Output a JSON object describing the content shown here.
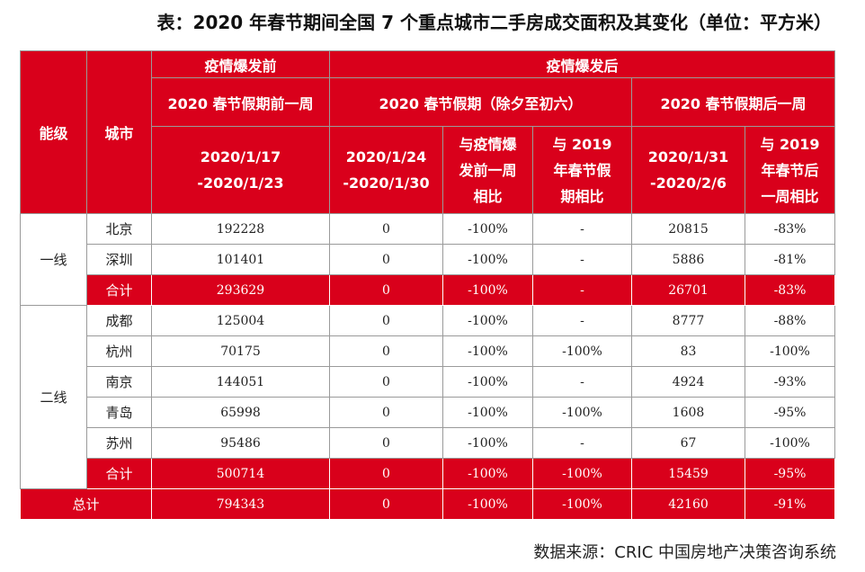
{
  "title": "表：2020 年春节期间全国 7 个重点城市二手房成交面积及其变化（单位：平方米）",
  "source": "数据来源：CRIC 中国房地产决策咨询系统",
  "header": {
    "tier": "能级",
    "city": "城市",
    "before_group": "疫情爆发前",
    "after_group": "疫情爆发后",
    "week_before": "2020 春节假期前一周",
    "holiday": "2020 春节假期（除夕至初六）",
    "week_after": "2020 春节假期后一周",
    "col1_line1": "2020/1/17",
    "col1_line2": "-2020/1/23",
    "col2_line1": "2020/1/24",
    "col2_line2": "-2020/1/30",
    "col3_line1": "与疫情爆",
    "col3_line2": "发前一周",
    "col3_line3": "相比",
    "col4_line1": "与 2019",
    "col4_line2": "年春节假",
    "col4_line3": "期相比",
    "col5_line1": "2020/1/31",
    "col5_line2": "-2020/2/6",
    "col6_line1": "与 2019",
    "col6_line2": "年春节后",
    "col6_line3": "一周相比"
  },
  "tiers": {
    "tier1": "一线",
    "tier2": "二线"
  },
  "rows": [
    {
      "city": "北京",
      "before": "192228",
      "holiday": "0",
      "vs_before": "-100%",
      "vs_2019": "-",
      "after": "20815",
      "vs_2019_after": "-83%"
    },
    {
      "city": "深圳",
      "before": "101401",
      "holiday": "0",
      "vs_before": "-100%",
      "vs_2019": "-",
      "after": "5886",
      "vs_2019_after": "-81%"
    },
    {
      "city": "合计",
      "before": "293629",
      "holiday": "0",
      "vs_before": "-100%",
      "vs_2019": "-",
      "after": "26701",
      "vs_2019_after": "-83%"
    },
    {
      "city": "成都",
      "before": "125004",
      "holiday": "0",
      "vs_before": "-100%",
      "vs_2019": "-",
      "after": "8777",
      "vs_2019_after": "-88%"
    },
    {
      "city": "杭州",
      "before": "70175",
      "holiday": "0",
      "vs_before": "-100%",
      "vs_2019": "-100%",
      "after": "83",
      "vs_2019_after": "-100%"
    },
    {
      "city": "南京",
      "before": "144051",
      "holiday": "0",
      "vs_before": "-100%",
      "vs_2019": "-",
      "after": "4924",
      "vs_2019_after": "-93%"
    },
    {
      "city": "青岛",
      "before": "65998",
      "holiday": "0",
      "vs_before": "-100%",
      "vs_2019": "-100%",
      "after": "1608",
      "vs_2019_after": "-95%"
    },
    {
      "city": "苏州",
      "before": "95486",
      "holiday": "0",
      "vs_before": "-100%",
      "vs_2019": "-",
      "after": "67",
      "vs_2019_after": "-100%"
    },
    {
      "city": "合计",
      "before": "500714",
      "holiday": "0",
      "vs_before": "-100%",
      "vs_2019": "-100%",
      "after": "15459",
      "vs_2019_after": "-95%"
    }
  ],
  "total": {
    "label": "总计",
    "before": "794343",
    "holiday": "0",
    "vs_before": "-100%",
    "vs_2019": "-100%",
    "after": "42160",
    "vs_2019_after": "-91%"
  },
  "colors": {
    "accent_red": "#d9001b",
    "border": "#9a9a9a"
  }
}
